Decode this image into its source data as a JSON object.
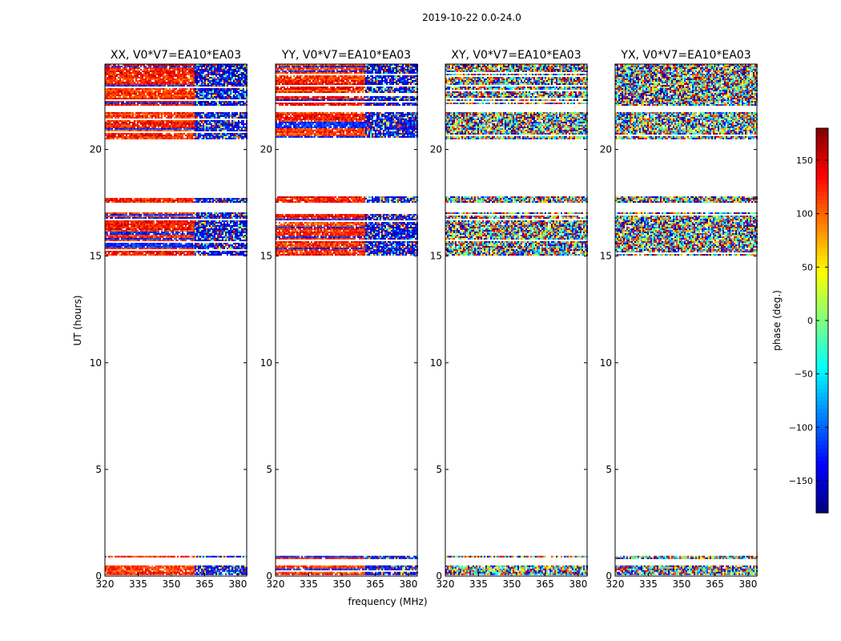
{
  "suptitle": "2019-10-22 0.0-24.0",
  "chart_data": {
    "type": "heatmap",
    "title": "2019-10-22 0.0-24.0",
    "xlabel": "frequency (MHz)",
    "ylabel": "UT (hours)",
    "xlim": [
      320,
      384
    ],
    "ylim": [
      0,
      24
    ],
    "xticks": [
      320,
      335,
      350,
      365,
      380
    ],
    "yticks": [
      0,
      5,
      10,
      15,
      20
    ],
    "colorbar": {
      "label": "phase (deg.)",
      "range": [
        -180,
        180
      ],
      "ticks": [
        -150,
        -100,
        -50,
        0,
        50,
        100,
        150
      ],
      "tick_labels": [
        "−150",
        "−100",
        "−50",
        "0",
        "50",
        "100",
        "150"
      ],
      "colormap": "jet"
    },
    "panels": [
      {
        "name": "XX",
        "title": "XX, V0*V7=EA10*EA03",
        "coherent": true,
        "pattern": "red-low-freq-blue-high"
      },
      {
        "name": "YY",
        "title": "YY, V0*V7=EA10*EA03",
        "coherent": true,
        "pattern": "red-low-freq-blue-high"
      },
      {
        "name": "XY",
        "title": "XY, V0*V7=EA10*EA03",
        "coherent": false,
        "pattern": "noise"
      },
      {
        "name": "YX",
        "title": "YX, V0*V7=EA10*EA03",
        "coherent": false,
        "pattern": "noise"
      }
    ],
    "data_time_ranges_hours": [
      {
        "start": 0.1,
        "end": 0.5
      },
      {
        "start": 0.85,
        "end": 0.95
      },
      {
        "start": 15.05,
        "end": 17.05
      },
      {
        "start": 17.55,
        "end": 17.8
      },
      {
        "start": 20.5,
        "end": 21.75
      },
      {
        "start": 22.1,
        "end": 24.0
      }
    ]
  }
}
